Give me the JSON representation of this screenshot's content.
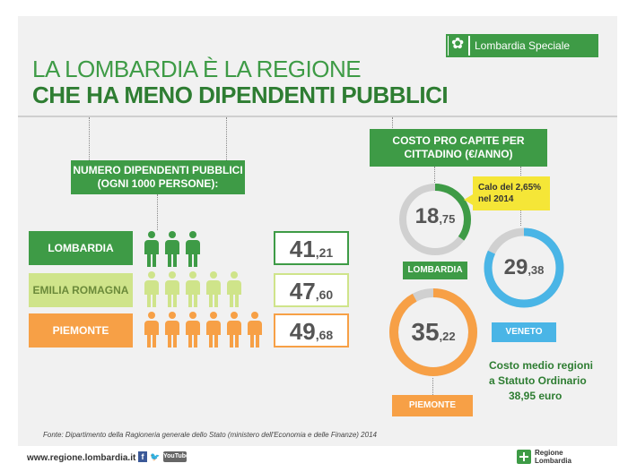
{
  "badge": {
    "label": "Lombardia Speciale",
    "icon": "flower-icon"
  },
  "title": {
    "line1": "LA LOMBARDIA È LA REGIONE",
    "line2": "CHE HA MENO DIPENDENTI PUBBLICI"
  },
  "employees": {
    "header": "NUMERO DIPENDENTI PUBBLICI (OGNI 1000 PERSONE):",
    "rows": [
      {
        "region": "LOMBARDIA",
        "int": "41",
        "dec": ",21",
        "people": 3,
        "color": "#3e9b46"
      },
      {
        "region": "EMILIA ROMAGNA",
        "int": "47",
        "dec": ",60",
        "people": 5,
        "color": "#cfe48a"
      },
      {
        "region": "PIEMONTE",
        "int": "49",
        "dec": ",68",
        "people": 6,
        "color": "#f7a046"
      }
    ]
  },
  "cost": {
    "header": "COSTO PRO CAPITE PER CITTADINO (€/ANNO)",
    "lombardia": {
      "label": "LOMBARDIA",
      "int": "18",
      "dec": ",75",
      "fill": 0.35,
      "color": "#3e9b46"
    },
    "veneto": {
      "label": "VENETO",
      "int": "29",
      "dec": ",38",
      "fill": 0.82,
      "color": "#4ab5e6"
    },
    "piemonte": {
      "label": "PIEMONTE",
      "int": "35",
      "dec": ",22",
      "fill": 0.92,
      "color": "#f7a046"
    },
    "callout": "Calo del 2,65% nel 2014",
    "average": {
      "line1": "Costo medio regioni",
      "line2": "a Statuto Ordinario",
      "line3": "38,95 euro"
    }
  },
  "source": "Fonte: Dipartimento della Ragioneria generale dello Stato (ministero dell'Economia e delle Finanze) 2014",
  "footer": {
    "url": "www.regione.lombardia.it",
    "social": [
      "facebook-icon",
      "twitter-icon",
      "youtube-icon"
    ],
    "youtube_label": "YouTube",
    "logo_line1": "Regione",
    "logo_line2": "Lombardia"
  }
}
